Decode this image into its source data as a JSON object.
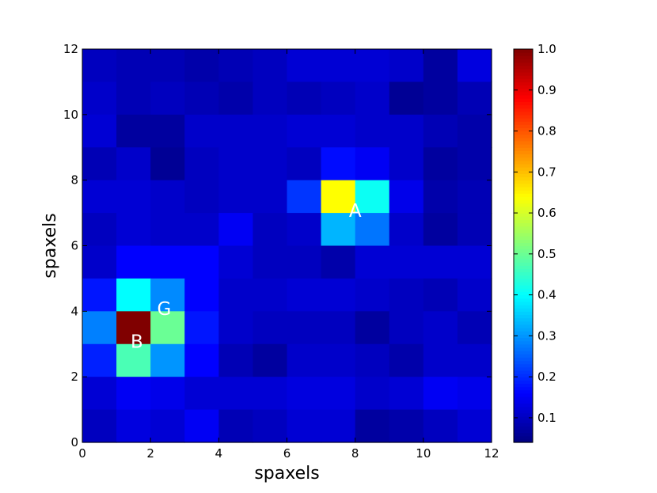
{
  "chart_data": {
    "type": "heatmap",
    "title": "",
    "xlabel": "spaxels",
    "ylabel": "spaxels",
    "xlim": [
      0,
      12
    ],
    "ylim": [
      0,
      12
    ],
    "x_ticks": [
      "0",
      "2",
      "4",
      "6",
      "8",
      "10",
      "12"
    ],
    "y_ticks": [
      "0",
      "2",
      "4",
      "6",
      "8",
      "10",
      "12"
    ],
    "colorbar": {
      "colormap": "jet",
      "min": 0.04,
      "max": 1.0,
      "ticks": [
        "0.1",
        "0.2",
        "0.3",
        "0.4",
        "0.5",
        "0.6",
        "0.7",
        "0.8",
        "0.9",
        "1.0"
      ]
    },
    "grid": false,
    "values_top_to_bottom": [
      [
        0.1,
        0.09,
        0.09,
        0.08,
        0.09,
        0.1,
        0.12,
        0.12,
        0.12,
        0.11,
        0.07,
        0.13
      ],
      [
        0.11,
        0.09,
        0.1,
        0.09,
        0.08,
        0.1,
        0.09,
        0.1,
        0.11,
        0.06,
        0.07,
        0.09
      ],
      [
        0.12,
        0.07,
        0.07,
        0.11,
        0.11,
        0.11,
        0.12,
        0.12,
        0.11,
        0.11,
        0.09,
        0.08
      ],
      [
        0.09,
        0.11,
        0.06,
        0.1,
        0.11,
        0.11,
        0.1,
        0.17,
        0.15,
        0.11,
        0.07,
        0.08
      ],
      [
        0.12,
        0.12,
        0.11,
        0.1,
        0.11,
        0.11,
        0.21,
        0.64,
        0.41,
        0.14,
        0.08,
        0.09
      ],
      [
        0.1,
        0.12,
        0.11,
        0.11,
        0.15,
        0.1,
        0.11,
        0.33,
        0.27,
        0.11,
        0.07,
        0.09
      ],
      [
        0.11,
        0.16,
        0.16,
        0.16,
        0.12,
        0.1,
        0.1,
        0.08,
        0.12,
        0.12,
        0.12,
        0.12
      ],
      [
        0.18,
        0.4,
        0.29,
        0.16,
        0.11,
        0.11,
        0.12,
        0.12,
        0.11,
        0.1,
        0.09,
        0.11
      ],
      [
        0.28,
        1.0,
        0.5,
        0.18,
        0.11,
        0.1,
        0.1,
        0.1,
        0.07,
        0.1,
        0.11,
        0.09
      ],
      [
        0.19,
        0.47,
        0.3,
        0.16,
        0.09,
        0.07,
        0.11,
        0.11,
        0.1,
        0.08,
        0.11,
        0.11
      ],
      [
        0.12,
        0.15,
        0.14,
        0.12,
        0.12,
        0.12,
        0.13,
        0.13,
        0.11,
        0.12,
        0.15,
        0.14
      ],
      [
        0.1,
        0.13,
        0.12,
        0.15,
        0.09,
        0.1,
        0.12,
        0.12,
        0.07,
        0.08,
        0.1,
        0.12
      ]
    ],
    "annotations": [
      {
        "text": "A",
        "x": 8.0,
        "y": 7.1
      },
      {
        "text": "G",
        "x": 2.4,
        "y": 4.1
      },
      {
        "text": "B",
        "x": 1.6,
        "y": 3.1
      }
    ]
  }
}
